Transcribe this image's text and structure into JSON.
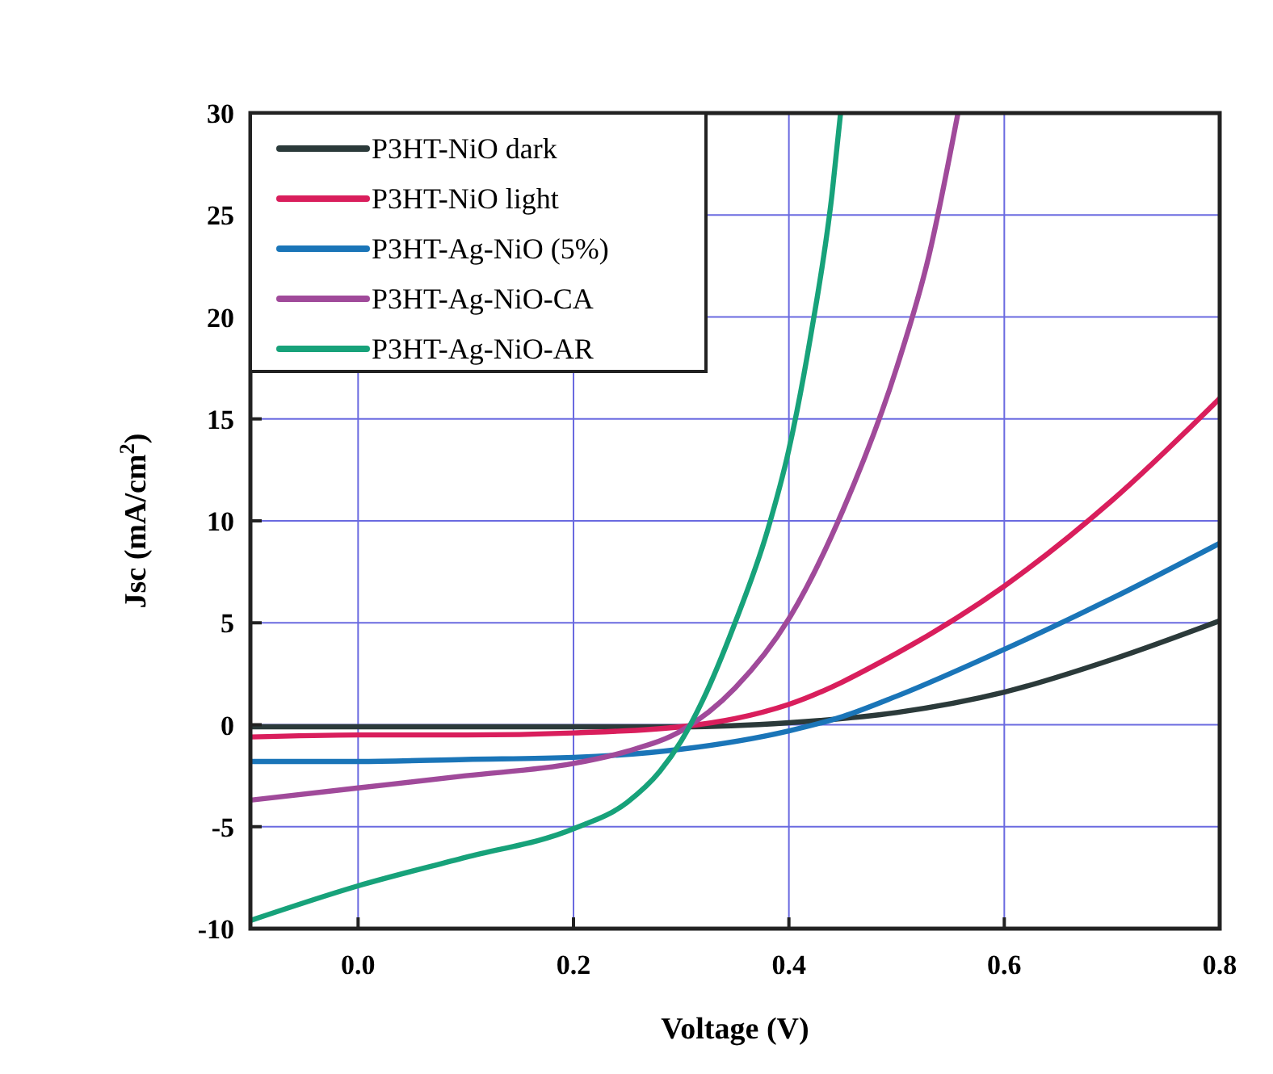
{
  "chart_data": {
    "type": "line",
    "xlabel": "Voltage (V)",
    "ylabel": "Jsc (mA/cm$^{2}$)",
    "xlim": [
      -0.1,
      0.8
    ],
    "xticks": [
      {
        "value": 0,
        "label": "0.0"
      },
      0.2,
      0.4,
      0.6,
      0.8
    ],
    "ylim": [
      -10,
      30
    ],
    "yticks": [
      -10,
      -5,
      0,
      5,
      10,
      15,
      20,
      25,
      30
    ],
    "grid": true,
    "legend": "top left",
    "marker": "none",
    "line_style": "solid",
    "series": [
      {
        "name": "P3HT-NiO dark",
        "color": "#2b3a3a",
        "x": [
          -0.1,
          0,
          0.1,
          0.2,
          0.3,
          0.4,
          0.5,
          0.6,
          0.7,
          0.8
        ],
        "values": [
          -0.1,
          -0.1,
          -0.1,
          -0.1,
          -0.1,
          0.1,
          0.6,
          1.6,
          3.2,
          5.1
        ]
      },
      {
        "name": "P3HT-NiO light",
        "color": "#d91e5c",
        "x": [
          -0.1,
          0,
          0.1,
          0.2,
          0.3,
          0.35,
          0.4,
          0.5,
          0.6,
          0.7,
          0.8
        ],
        "values": [
          -0.6,
          -0.5,
          -0.5,
          -0.4,
          -0.1,
          0.3,
          1.0,
          3.5,
          6.8,
          11,
          16
        ]
      },
      {
        "name": "P3HT-Ag-NiO (5%)",
        "color": "#1a75b8",
        "x": [
          -0.1,
          0,
          0.1,
          0.2,
          0.3,
          0.4,
          0.45,
          0.5,
          0.6,
          0.7,
          0.8
        ],
        "values": [
          -1.8,
          -1.8,
          -1.7,
          -1.6,
          -1.2,
          -0.3,
          0.4,
          1.4,
          3.7,
          6.2,
          8.9
        ]
      },
      {
        "name": "P3HT-Ag-NiO-CA",
        "color": "#a04a9a",
        "x": [
          -0.1,
          0,
          0.1,
          0.2,
          0.25,
          0.3,
          0.35,
          0.4,
          0.45,
          0.5,
          0.53,
          0.557
        ],
        "values": [
          -3.7,
          -3.1,
          -2.5,
          -1.9,
          -1.3,
          -0.3,
          1.8,
          5.2,
          10.5,
          17.5,
          23,
          30
        ]
      },
      {
        "name": "P3HT-Ag-NiO-AR",
        "color": "#17a27a",
        "x": [
          -0.1,
          0,
          0.1,
          0.2,
          0.25,
          0.28,
          0.3,
          0.32,
          0.35,
          0.38,
          0.4,
          0.42,
          0.44,
          0.448
        ],
        "values": [
          -9.6,
          -7.9,
          -6.5,
          -5.1,
          -3.8,
          -2.3,
          -0.8,
          1.2,
          5,
          9.5,
          13.5,
          19,
          26,
          30
        ]
      }
    ]
  }
}
